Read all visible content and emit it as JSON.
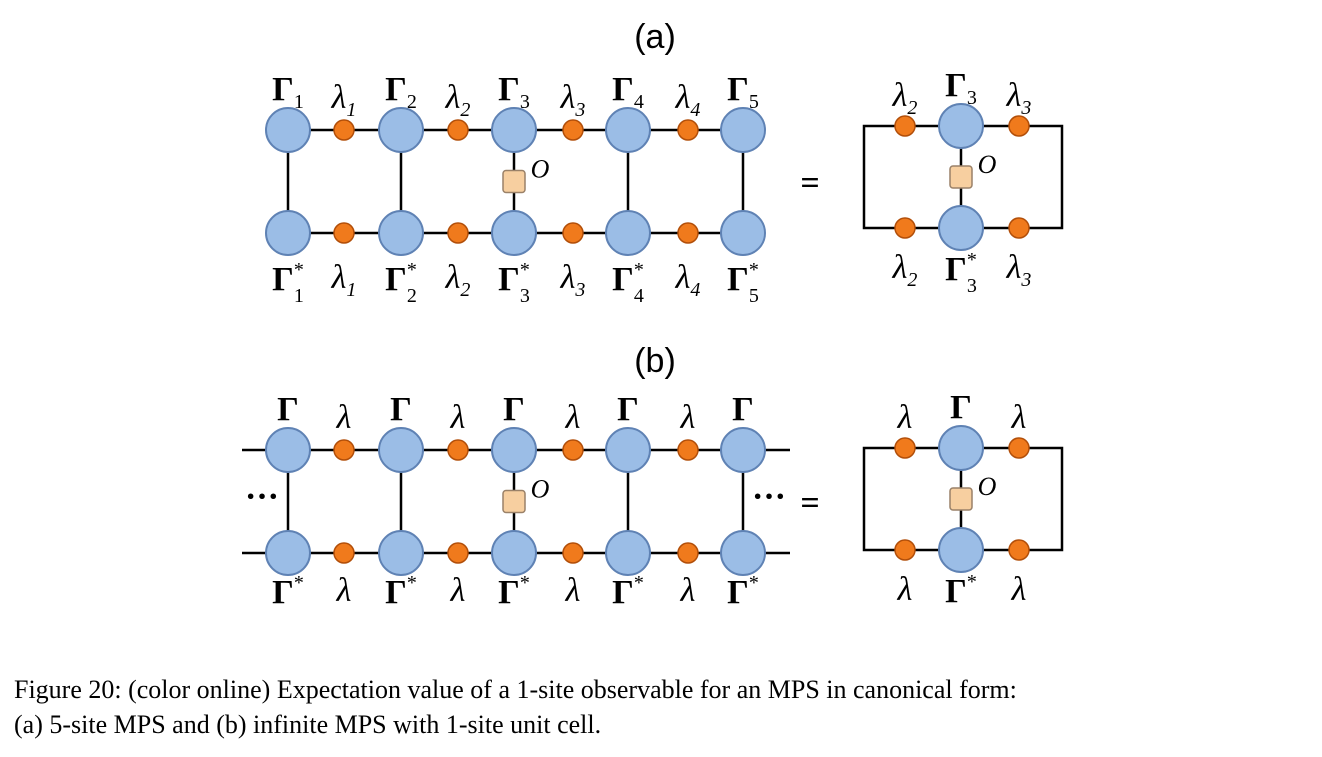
{
  "panels": [
    {
      "id": "a",
      "label": "(a)",
      "top_tensors": [
        {
          "symbol": "Γ",
          "sub": "1"
        },
        {
          "symbol": "Γ",
          "sub": "2"
        },
        {
          "symbol": "Γ",
          "sub": "3"
        },
        {
          "symbol": "Γ",
          "sub": "4"
        },
        {
          "symbol": "Γ",
          "sub": "5"
        }
      ],
      "bottom_tensors": [
        {
          "symbol": "Γ",
          "sup": "*",
          "sub": "1"
        },
        {
          "symbol": "Γ",
          "sup": "*",
          "sub": "2"
        },
        {
          "symbol": "Γ",
          "sup": "*",
          "sub": "3"
        },
        {
          "symbol": "Γ",
          "sup": "*",
          "sub": "4"
        },
        {
          "symbol": "Γ",
          "sup": "*",
          "sub": "5"
        }
      ],
      "top_lambdas": [
        {
          "symbol": "λ",
          "sub": "1"
        },
        {
          "symbol": "λ",
          "sub": "2"
        },
        {
          "symbol": "λ",
          "sub": "3"
        },
        {
          "symbol": "λ",
          "sub": "4"
        }
      ],
      "bottom_lambdas": [
        {
          "symbol": "λ",
          "sub": "1"
        },
        {
          "symbol": "λ",
          "sub": "2"
        },
        {
          "symbol": "λ",
          "sub": "3"
        },
        {
          "symbol": "λ",
          "sub": "4"
        }
      ],
      "operator": "O",
      "equals": "=",
      "reduced": {
        "top_left": {
          "symbol": "λ",
          "sub": "2"
        },
        "top_tensor": {
          "symbol": "Γ",
          "sub": "3"
        },
        "top_right": {
          "symbol": "λ",
          "sub": "3"
        },
        "bottom_left": {
          "symbol": "λ",
          "sub": "2"
        },
        "bottom_tensor": {
          "symbol": "Γ",
          "sup": "*",
          "sub": "3"
        },
        "bottom_right": {
          "symbol": "λ",
          "sub": "3"
        },
        "operator": "O"
      }
    },
    {
      "id": "b",
      "label": "(b)",
      "top_tensors": [
        {
          "symbol": "Γ"
        },
        {
          "symbol": "Γ"
        },
        {
          "symbol": "Γ"
        },
        {
          "symbol": "Γ"
        },
        {
          "symbol": "Γ"
        }
      ],
      "bottom_tensors": [
        {
          "symbol": "Γ",
          "sup": "*"
        },
        {
          "symbol": "Γ",
          "sup": "*"
        },
        {
          "symbol": "Γ",
          "sup": "*"
        },
        {
          "symbol": "Γ",
          "sup": "*"
        },
        {
          "symbol": "Γ",
          "sup": "*"
        }
      ],
      "top_lambdas": [
        {
          "symbol": "λ"
        },
        {
          "symbol": "λ"
        },
        {
          "symbol": "λ"
        },
        {
          "symbol": "λ"
        }
      ],
      "bottom_lambdas": [
        {
          "symbol": "λ"
        },
        {
          "symbol": "λ"
        },
        {
          "symbol": "λ"
        },
        {
          "symbol": "λ"
        }
      ],
      "operator": "O",
      "ellipsis": "···",
      "equals": "=",
      "reduced": {
        "top_left": {
          "symbol": "λ"
        },
        "top_tensor": {
          "symbol": "Γ"
        },
        "top_right": {
          "symbol": "λ"
        },
        "bottom_left": {
          "symbol": "λ"
        },
        "bottom_tensor": {
          "symbol": "Γ",
          "sup": "*"
        },
        "bottom_right": {
          "symbol": "λ"
        },
        "operator": "O"
      }
    }
  ],
  "colors": {
    "tensor_fill": "#9bbde6",
    "tensor_stroke": "#5f82b4",
    "lambda_fill": "#f07a1c",
    "lambda_stroke": "#b24f0a",
    "operator_fill": "#f7cfa0",
    "operator_stroke": "#9a8168",
    "line": "#000000"
  },
  "caption": {
    "line1": "Figure 20: (color online) Expectation value of a 1-site observable for an MPS in canonical form:",
    "line2": "(a) 5-site MPS and (b) infinite MPS with 1-site unit cell."
  }
}
